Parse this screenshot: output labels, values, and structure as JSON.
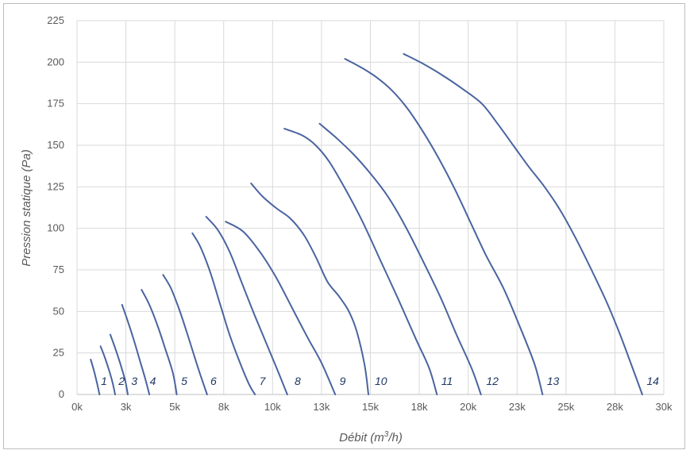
{
  "chart_data": {
    "type": "line",
    "title": "",
    "xlabel": "Débit (m³/h)",
    "ylabel": "Pression statique (Pa)",
    "xlim": [
      0,
      30000
    ],
    "ylim": [
      0,
      225
    ],
    "grid": true,
    "legend": "none",
    "line_color": "#4a64a0",
    "x_ticks": [
      "0k",
      "3k",
      "5k",
      "8k",
      "10k",
      "13k",
      "15k",
      "18k",
      "20k",
      "23k",
      "25k",
      "28k",
      "30k"
    ],
    "y_ticks": [
      "0",
      "25",
      "50",
      "75",
      "100",
      "125",
      "150",
      "175",
      "200",
      "225"
    ],
    "series": [
      {
        "label": "1",
        "x": [
          700,
          850,
          1000,
          1150
        ],
        "y": [
          21,
          15,
          8,
          0
        ]
      },
      {
        "label": "2",
        "x": [
          1200,
          1400,
          1600,
          1800,
          1950
        ],
        "y": [
          29,
          23,
          16,
          8,
          0
        ]
      },
      {
        "label": "3",
        "x": [
          1700,
          1950,
          2200,
          2450,
          2600
        ],
        "y": [
          36,
          28,
          19,
          9,
          0
        ]
      },
      {
        "label": "4",
        "x": [
          2300,
          2600,
          2900,
          3200,
          3500,
          3700
        ],
        "y": [
          54,
          44,
          33,
          21,
          9,
          0
        ]
      },
      {
        "label": "5",
        "x": [
          3300,
          3700,
          4100,
          4500,
          4900,
          5100
        ],
        "y": [
          63,
          54,
          42,
          28,
          13,
          0
        ]
      },
      {
        "label": "6",
        "x": [
          4400,
          4800,
          5200,
          5600,
          6000,
          6300,
          6650
        ],
        "y": [
          72,
          64,
          52,
          38,
          23,
          12,
          0
        ]
      },
      {
        "label": "7",
        "x": [
          5900,
          6300,
          6800,
          7300,
          7800,
          8300,
          8800,
          9100
        ],
        "y": [
          97,
          89,
          74,
          55,
          36,
          20,
          6,
          0
        ]
      },
      {
        "label": "8",
        "x": [
          6600,
          7200,
          7800,
          8400,
          9000,
          9600,
          10200,
          10750
        ],
        "y": [
          107,
          99,
          86,
          68,
          50,
          33,
          16,
          0
        ]
      },
      {
        "label": "9",
        "x": [
          7600,
          8500,
          9400,
          10200,
          11000,
          11800,
          12500,
          13200
        ],
        "y": [
          104,
          98,
          85,
          70,
          52,
          34,
          19,
          0
        ]
      },
      {
        "label": "10",
        "x": [
          8900,
          9500,
          10200,
          10900,
          11600,
          12200,
          12800,
          13400,
          13900,
          14300,
          14700,
          14900
        ],
        "y": [
          127,
          119,
          112,
          106,
          96,
          83,
          68,
          59,
          50,
          38,
          18,
          0
        ]
      },
      {
        "label": "11",
        "x": [
          10600,
          11500,
          12200,
          12900,
          13700,
          14600,
          15500,
          16400,
          17300,
          18000,
          18400
        ],
        "y": [
          160,
          156,
          150,
          140,
          124,
          104,
          81,
          58,
          34,
          16,
          0
        ]
      },
      {
        "label": "12",
        "x": [
          12400,
          13200,
          14100,
          15000,
          15900,
          16800,
          17700,
          18600,
          19400,
          20200,
          20650
        ],
        "y": [
          163,
          155,
          145,
          133,
          119,
          101,
          80,
          58,
          36,
          15,
          0
        ]
      },
      {
        "label": "13",
        "x": [
          13700,
          14500,
          15300,
          16100,
          16900,
          17700,
          18500,
          19300,
          20100,
          20900,
          21800,
          22600,
          23400,
          23800
        ],
        "y": [
          202,
          197,
          191,
          183,
          172,
          158,
          142,
          124,
          104,
          84,
          64,
          42,
          18,
          0
        ]
      },
      {
        "label": "14",
        "x": [
          16700,
          17700,
          18700,
          19700,
          20700,
          21500,
          22300,
          23100,
          23900,
          24700,
          25500,
          26300,
          27100,
          27800,
          28400,
          28900
        ],
        "y": [
          205,
          199,
          192,
          184,
          175,
          163,
          150,
          137,
          125,
          111,
          94,
          75,
          55,
          35,
          16,
          0
        ]
      }
    ],
    "curve_labels": [
      {
        "text": "1",
        "x": 1100
      },
      {
        "text": "2",
        "x": 2000
      },
      {
        "text": "3",
        "x": 2650
      },
      {
        "text": "4",
        "x": 3600
      },
      {
        "text": "5",
        "x": 5200
      },
      {
        "text": "6",
        "x": 6700
      },
      {
        "text": "7",
        "x": 9200
      },
      {
        "text": "8",
        "x": 11000
      },
      {
        "text": "9",
        "x": 13300
      },
      {
        "text": "10",
        "x": 15100
      },
      {
        "text": "11",
        "x": 18500
      },
      {
        "text": "12",
        "x": 20800
      },
      {
        "text": "13",
        "x": 23900
      },
      {
        "text": "14",
        "x": 29000
      }
    ]
  }
}
